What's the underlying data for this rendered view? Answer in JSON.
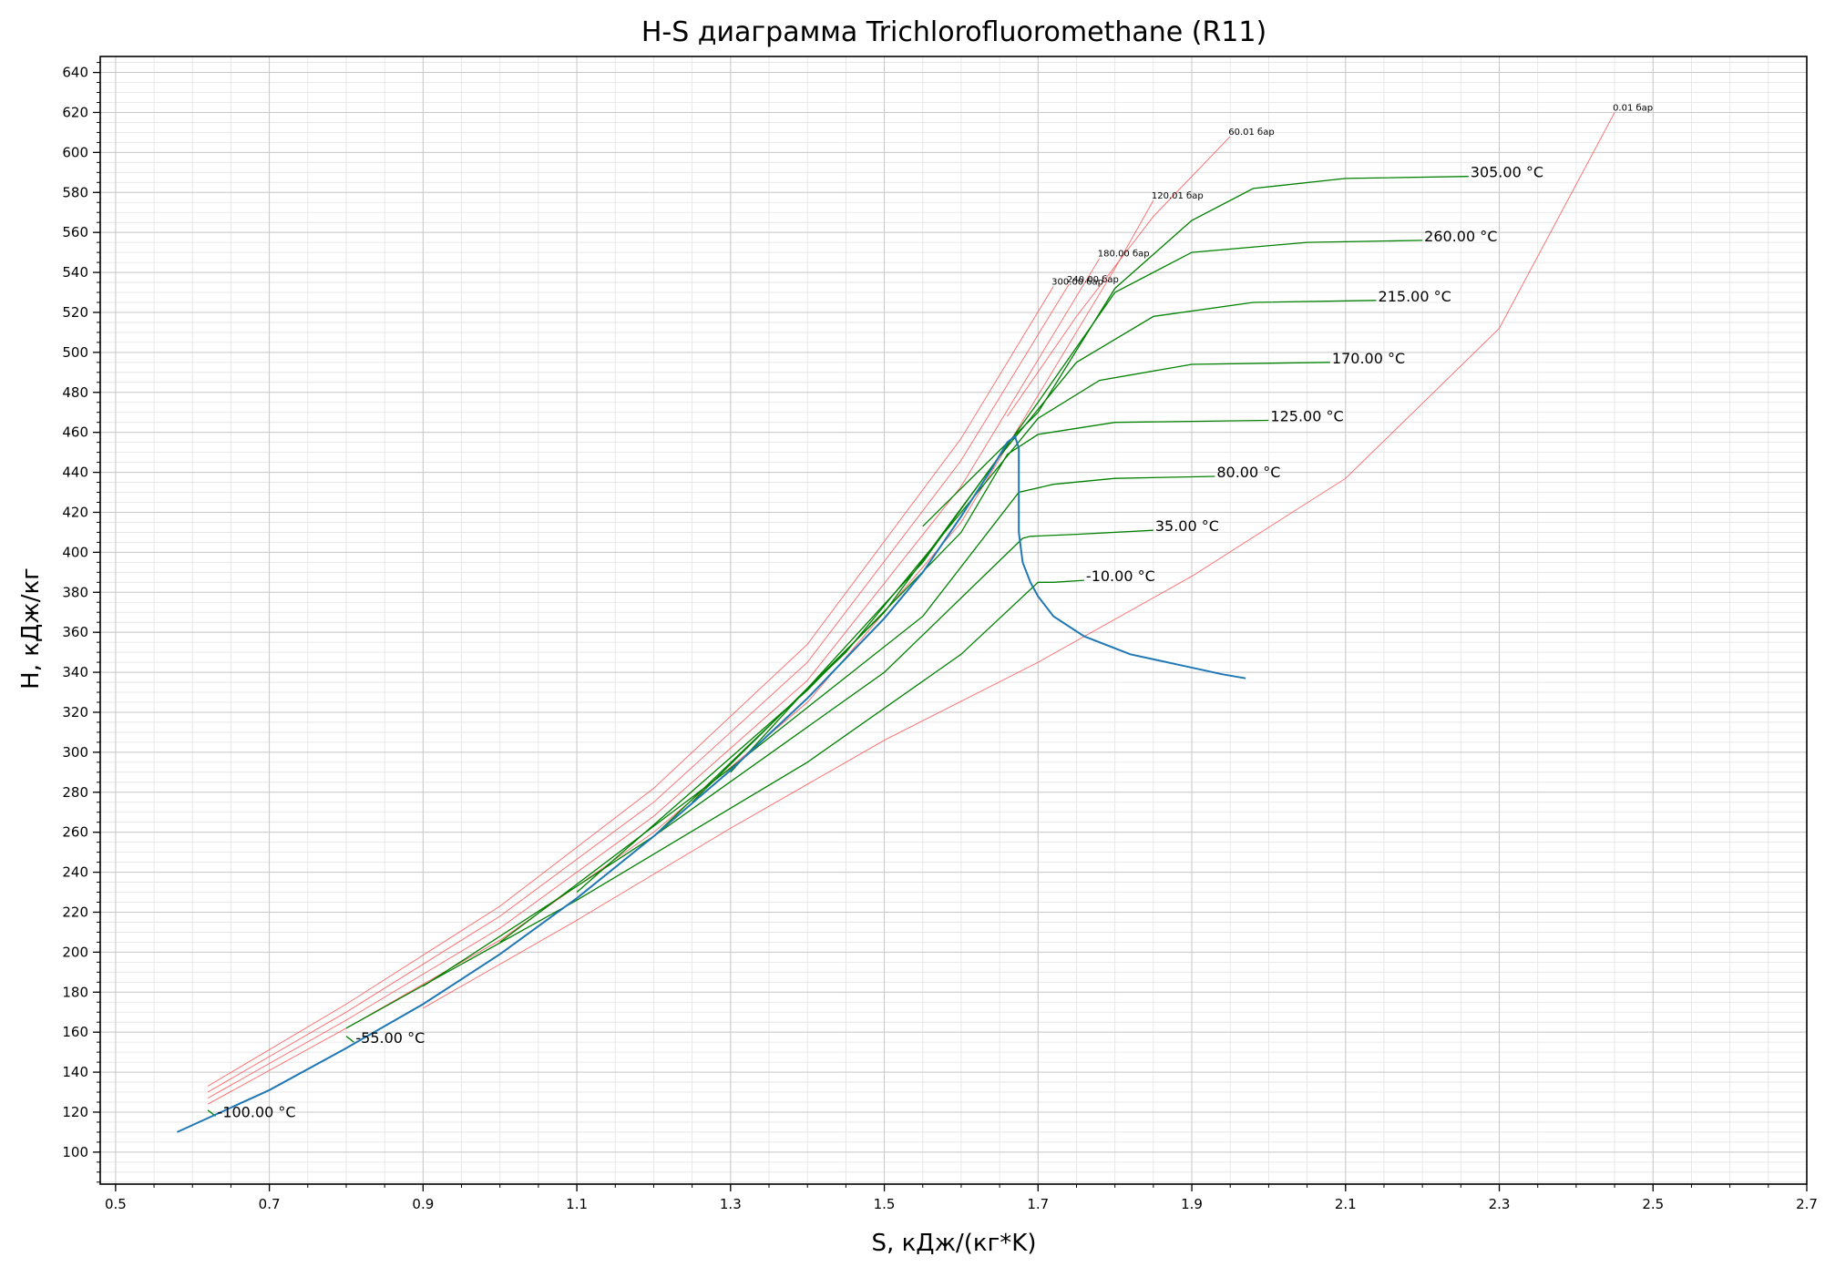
{
  "chart_data": {
    "type": "line",
    "title": "H-S диаграмма Trichlorofluoromethane (R11)",
    "xlabel": "S, кДж/(кг*K)",
    "ylabel": "H, кДж/кг",
    "xlim": [
      0.48,
      2.7
    ],
    "ylim": [
      84,
      648
    ],
    "grid": true,
    "x_ticks": [
      "0.5",
      "0.7",
      "0.9",
      "1.1",
      "1.3",
      "1.5",
      "1.7",
      "1.9",
      "2.1",
      "2.3",
      "2.5",
      "2.7"
    ],
    "y_ticks": [
      "100",
      "120",
      "140",
      "160",
      "180",
      "200",
      "220",
      "240",
      "260",
      "280",
      "300",
      "320",
      "340",
      "360",
      "380",
      "400",
      "420",
      "440",
      "460",
      "480",
      "500",
      "520",
      "540",
      "560",
      "580",
      "600",
      "620",
      "640"
    ],
    "colors": {
      "saturation": "#1f77b4",
      "isotherm": "#008000",
      "isobar": "#ff4d4d"
    },
    "saturation_curve": {
      "x": [
        0.58,
        0.7,
        0.8,
        0.9,
        1.0,
        1.1,
        1.2,
        1.3,
        1.4,
        1.5,
        1.55,
        1.6,
        1.64,
        1.66,
        1.67,
        1.675,
        1.675,
        1.675,
        1.68,
        1.69,
        1.7,
        1.72,
        1.76,
        1.82,
        1.88,
        1.94,
        1.97
      ],
      "y": [
        110,
        131,
        152,
        174,
        199,
        227,
        258,
        291,
        327,
        367,
        390,
        418,
        442,
        455,
        458,
        452,
        430,
        410,
        395,
        385,
        378,
        368,
        358,
        349,
        344,
        339,
        337
      ]
    },
    "isotherms": [
      {
        "label": "-100.00 °C",
        "x": [
          0.62,
          0.63
        ],
        "y": [
          121,
          118
        ]
      },
      {
        "label": "-55.00 °C",
        "x": [
          0.8,
          0.81
        ],
        "y": [
          158,
          155
        ]
      },
      {
        "label": "-10.00 °C",
        "x": [
          0.8,
          1.1,
          1.4,
          1.6,
          1.7,
          1.72,
          1.76
        ],
        "y": [
          162,
          226,
          295,
          349,
          385,
          385,
          386
        ]
      },
      {
        "label": "35.00 °C",
        "x": [
          0.9,
          1.2,
          1.5,
          1.68,
          1.69,
          1.75,
          1.85
        ],
        "y": [
          183,
          258,
          340,
          407,
          408,
          409,
          411
        ]
      },
      {
        "label": "80.00 °C",
        "x": [
          1.0,
          1.3,
          1.55,
          1.675,
          1.72,
          1.8,
          1.93
        ],
        "y": [
          205,
          292,
          368,
          430,
          434,
          437,
          438
        ]
      },
      {
        "label": "125.00 °C",
        "x": [
          1.1,
          1.4,
          1.6,
          1.66,
          1.7,
          1.8,
          2.0
        ],
        "y": [
          230,
          331,
          410,
          449,
          459,
          465,
          466
        ]
      },
      {
        "label": "170.00 °C",
        "x": [
          1.2,
          1.45,
          1.6,
          1.7,
          1.78,
          1.9,
          2.08
        ],
        "y": [
          258,
          350,
          420,
          467,
          486,
          494,
          495
        ]
      },
      {
        "label": "215.00 °C",
        "x": [
          1.25,
          1.5,
          1.65,
          1.75,
          1.85,
          1.98,
          2.14
        ],
        "y": [
          275,
          370,
          448,
          495,
          518,
          525,
          526
        ]
      },
      {
        "label": "260.00 °C",
        "x": [
          1.3,
          1.55,
          1.7,
          1.8,
          1.9,
          2.05,
          2.2
        ],
        "y": [
          290,
          395,
          475,
          530,
          550,
          555,
          556
        ]
      },
      {
        "label": "305.00 °C",
        "x": [
          1.55,
          1.7,
          1.8,
          1.9,
          1.98,
          2.1,
          2.26
        ],
        "y": [
          413,
          470,
          532,
          566,
          582,
          587,
          588
        ]
      }
    ],
    "isobars": [
      {
        "label": "0.01 бар",
        "x": [
          0.9,
          1.1,
          1.3,
          1.5,
          1.7,
          1.9,
          2.1,
          2.3,
          2.45
        ],
        "y": [
          172,
          216,
          262,
          306,
          345,
          388,
          437,
          512,
          620
        ]
      },
      {
        "label": "60.01 бар",
        "x": [
          1.66,
          1.75,
          1.85,
          1.95
        ],
        "y": [
          468,
          518,
          568,
          608
        ]
      },
      {
        "label": "120.01 бар",
        "x": [
          0.62,
          0.8,
          1.0,
          1.2,
          1.4,
          1.6,
          1.8,
          1.85
        ],
        "y": [
          124,
          162,
          206,
          260,
          325,
          415,
          542,
          576
        ]
      },
      {
        "label": "180.00 бар",
        "x": [
          0.62,
          0.8,
          1.0,
          1.2,
          1.4,
          1.6,
          1.78
        ],
        "y": [
          127,
          166,
          212,
          268,
          336,
          433,
          547
        ]
      },
      {
        "label": "240.00 бар",
        "x": [
          0.62,
          0.8,
          1.0,
          1.2,
          1.4,
          1.6,
          1.74
        ],
        "y": [
          130,
          170,
          218,
          275,
          345,
          446,
          534
        ]
      },
      {
        "label": "300.00 бар",
        "x": [
          0.62,
          0.8,
          1.0,
          1.2,
          1.4,
          1.6,
          1.72
        ],
        "y": [
          133,
          174,
          223,
          282,
          354,
          457,
          533
        ]
      }
    ]
  }
}
